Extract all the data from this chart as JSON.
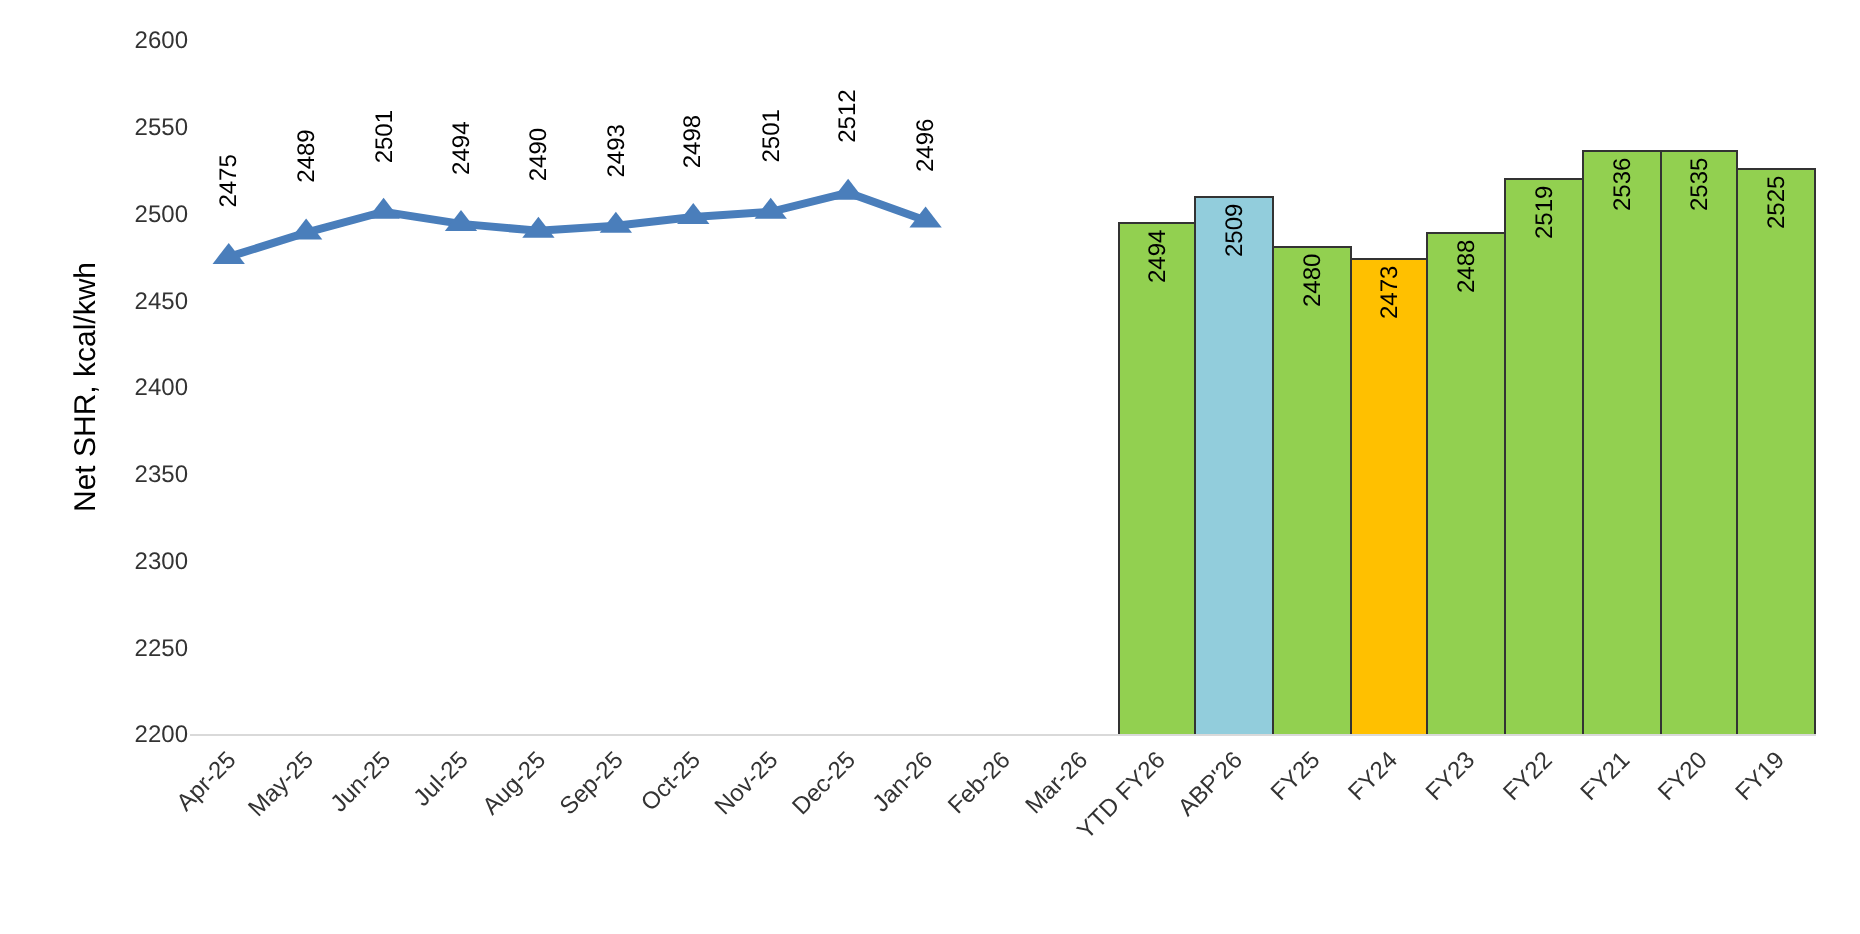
{
  "chart_data": {
    "type": "bar",
    "ylabel": "Net SHR, kcal/kwh",
    "categories": [
      "Apr-25",
      "May-25",
      "Jun-25",
      "Jul-25",
      "Aug-25",
      "Sep-25",
      "Oct-25",
      "Nov-25",
      "Dec-25",
      "Jan-26",
      "Feb-26",
      "Mar-26",
      "YTD FY26",
      "ABP'26",
      "FY25",
      "FY24",
      "FY23",
      "FY22",
      "FY21",
      "FY20",
      "FY19"
    ],
    "series": [
      {
        "type": "line",
        "color": "#4a7ebb",
        "marker": "triangle",
        "line_style": "solid",
        "values": [
          2475,
          2489,
          2501,
          2494,
          2490,
          2493,
          2498,
          2501,
          2512,
          2496,
          null,
          null,
          null,
          null,
          null,
          null,
          null,
          null,
          null,
          null,
          null
        ]
      },
      {
        "colors": [
          "#92d050",
          "#92d050",
          "#92d050",
          "#92d050",
          "#92d050",
          "#92d050",
          "#92d050",
          "#92d050",
          "#92d050",
          "#92d050",
          "#92d050",
          "#92d050",
          "#92d050",
          "#92cddc",
          "#92d050",
          "#ffc000",
          "#92d050",
          "#92d050",
          "#92d050",
          "#92d050",
          "#92d050"
        ],
        "values": [
          null,
          null,
          null,
          null,
          null,
          null,
          null,
          null,
          null,
          null,
          null,
          null,
          2494,
          2509,
          2480,
          2473,
          2488,
          2519,
          2536,
          2535,
          2525
        ]
      }
    ],
    "ylim": [
      2200,
      2600
    ],
    "yticks": [
      2200,
      2250,
      2300,
      2350,
      2400,
      2450,
      2500,
      2550,
      2600
    ],
    "data_labels": true
  }
}
